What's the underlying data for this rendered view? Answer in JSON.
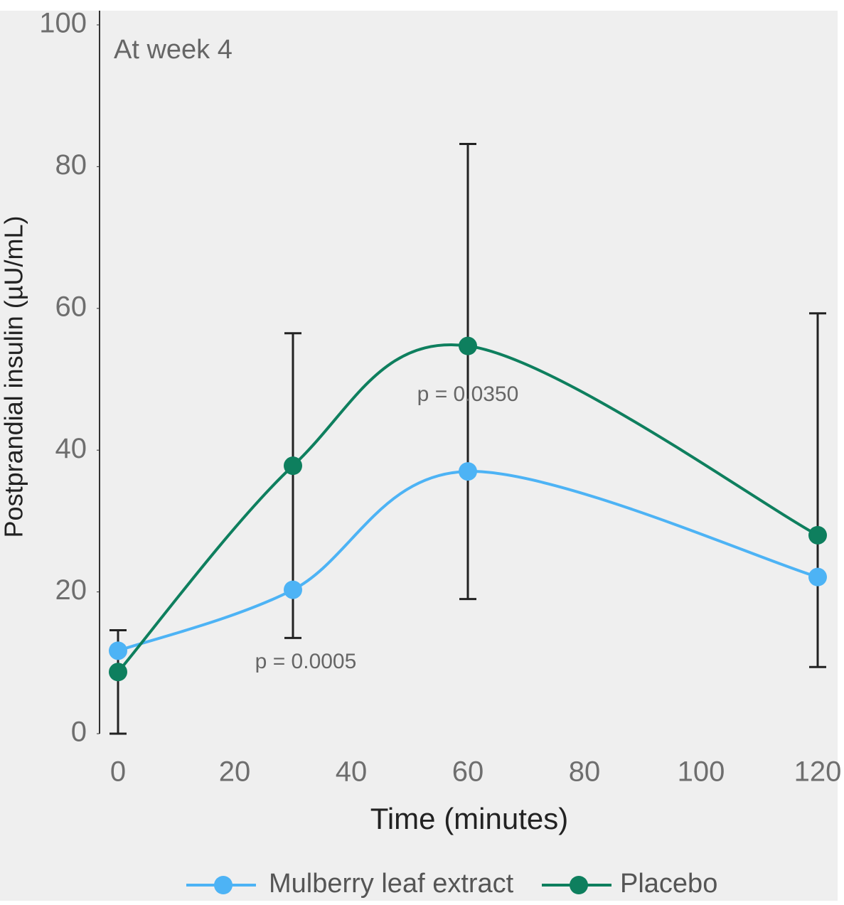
{
  "chart_data": {
    "type": "line",
    "title": "At week 4",
    "x_label": "Time (minutes)",
    "y_label": "Postprandial insulin (µU/mL)",
    "xlim": [
      0,
      120
    ],
    "xticks": [
      0,
      20,
      40,
      60,
      80,
      100,
      120
    ],
    "ylim": [
      0,
      100
    ],
    "yticks": [
      0,
      20,
      40,
      60,
      80,
      100
    ],
    "x": [
      0,
      30,
      60,
      120
    ],
    "series": [
      {
        "name": "Mulberry leaf extract",
        "color": "#4db3f5",
        "values": [
          11.7,
          20.3,
          37.0,
          22.1
        ]
      },
      {
        "name": "Placebo",
        "color": "#0e7f5e",
        "values": [
          8.7,
          37.8,
          54.7,
          28.0
        ]
      }
    ],
    "error_bars": {
      "low": [
        0,
        13.5,
        19.0,
        9.4
      ],
      "high": [
        14.6,
        56.5,
        83.2,
        59.3
      ]
    },
    "annotations": [
      "p = 0.0005",
      "p = 0.0350"
    ]
  }
}
